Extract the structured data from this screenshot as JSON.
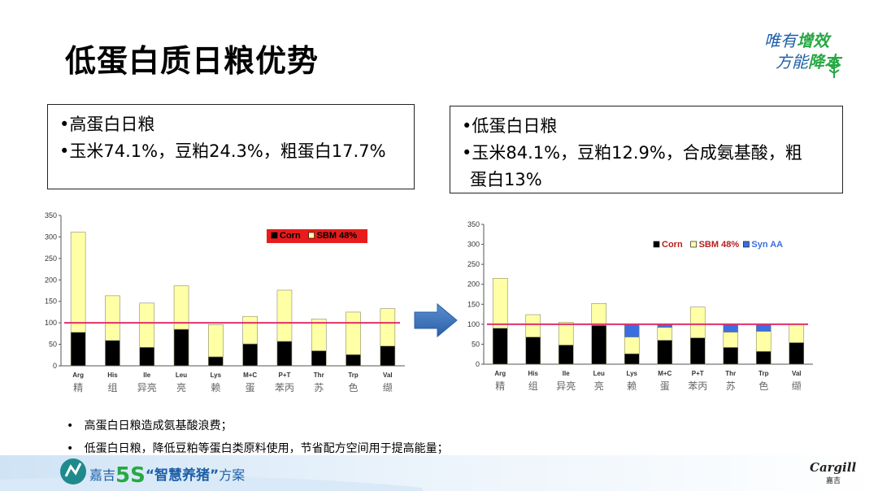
{
  "title": "低蛋白质日粮优势",
  "slogan": {
    "line1_pre": "唯有",
    "line1_hl": "增效",
    "line2_pre": "方能",
    "line2_hl": "降本"
  },
  "box_left": {
    "l1": "•高蛋白日粮",
    "l2": "•玉米74.1%，豆粕24.3%，粗蛋白17.7%"
  },
  "box_right": {
    "l1": "•低蛋白日粮",
    "l2": "•玉米84.1%，豆粕12.9%，合成氨基酸，粗",
    "l3": "蛋白13%"
  },
  "bullets": [
    "高蛋白日粮造成氨基酸浪费；",
    "低蛋白日粮，降低豆粕等蛋白类原料使用，节省配方空间用于提高能量；"
  ],
  "footer": {
    "brand": "嘉吉",
    "five_s": "5S",
    "quoted": "“智慧养猪”",
    "suffix": "方案",
    "cargill": "Cargill",
    "cargill_cn": "嘉吉"
  },
  "colors": {
    "corn": "#000000",
    "sbm": "#ffffa6",
    "syn": "#3b6fe0",
    "refline": "#e0306a",
    "legend_bg": "#e81c1c",
    "slogan": "#1d5fa8",
    "accent": "#27a844"
  },
  "chart_data": [
    {
      "type": "bar",
      "stacked": true,
      "categories": [
        "Arg",
        "His",
        "Ile",
        "Leu",
        "Lys",
        "M+C",
        "P+T",
        "Thr",
        "Trp",
        "Val"
      ],
      "categories_cn": [
        "精",
        "组",
        "异亮",
        "亮",
        "赖",
        "蛋",
        "苯丙",
        "苏",
        "色",
        "缬"
      ],
      "ylim": [
        0,
        350
      ],
      "yticks": [
        0,
        50,
        100,
        150,
        200,
        250,
        300,
        350
      ],
      "reference_line": 100,
      "legend_position": "top-right",
      "series": [
        {
          "name": "Corn",
          "values": [
            78,
            59,
            43,
            85,
            21,
            51,
            57,
            35,
            26,
            46
          ]
        },
        {
          "name": "SBM 48%",
          "values": [
            233,
            104,
            103,
            101,
            75,
            64,
            119,
            74,
            99,
            87
          ]
        }
      ]
    },
    {
      "type": "bar",
      "stacked": true,
      "categories": [
        "Arg",
        "His",
        "Ile",
        "Leu",
        "Lys",
        "M+C",
        "P+T",
        "Thr",
        "Trp",
        "Val"
      ],
      "categories_cn": [
        "精",
        "组",
        "异亮",
        "亮",
        "赖",
        "蛋",
        "苯丙",
        "苏",
        "色",
        "缬"
      ],
      "ylim": [
        0,
        350
      ],
      "yticks": [
        0,
        50,
        100,
        150,
        200,
        250,
        300,
        350
      ],
      "reference_line": 100,
      "legend_position": "top-right",
      "series": [
        {
          "name": "Corn",
          "values": [
            90,
            68,
            48,
            97,
            26,
            60,
            66,
            42,
            32,
            54
          ]
        },
        {
          "name": "SBM 48%",
          "values": [
            125,
            56,
            57,
            55,
            42,
            32,
            77,
            38,
            50,
            47
          ]
        },
        {
          "name": "Syn AA",
          "values": [
            0,
            0,
            0,
            0,
            32,
            8,
            0,
            20,
            18,
            0
          ]
        }
      ]
    }
  ]
}
